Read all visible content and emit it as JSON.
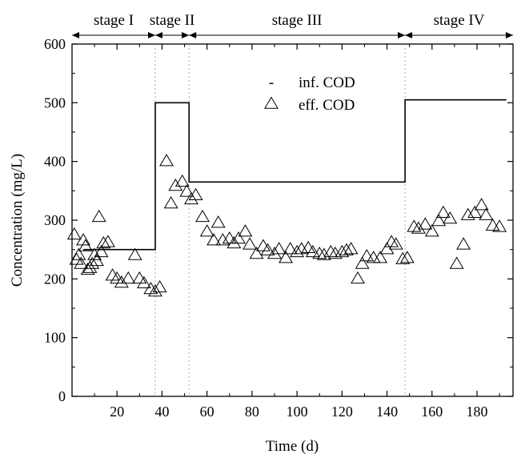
{
  "chart_data": {
    "type": "scatter",
    "xlabel": "Time (d)",
    "ylabel": "Concentration (mg/L)",
    "xlim": [
      0,
      196
    ],
    "ylim": [
      0,
      600
    ],
    "x_ticks": [
      20,
      40,
      60,
      80,
      100,
      120,
      140,
      160,
      180
    ],
    "y_ticks": [
      0,
      100,
      200,
      300,
      400,
      500,
      600
    ],
    "grid": false,
    "legend_position": "top-center",
    "stages": [
      {
        "label": "stage I",
        "start": 0,
        "end": 37
      },
      {
        "label": "stage II",
        "start": 37,
        "end": 52
      },
      {
        "label": "stage III",
        "start": 52,
        "end": 148
      },
      {
        "label": "stage IV",
        "start": 148,
        "end": 196
      }
    ],
    "series": [
      {
        "name": "inf. COD",
        "type": "line",
        "marker_symbol": "-",
        "x": [
          5,
          37,
          37,
          52,
          52,
          148,
          148,
          193
        ],
        "y": [
          250,
          250,
          500,
          500,
          365,
          365,
          505,
          505
        ]
      },
      {
        "name": "eff. COD",
        "type": "scatter",
        "marker": "triangle-open",
        "x": [
          1,
          2,
          3,
          4,
          5,
          6,
          7,
          8,
          9,
          10,
          11,
          12,
          13,
          14,
          16,
          18,
          20,
          22,
          25,
          28,
          30,
          32,
          35,
          37,
          39,
          42,
          44,
          46,
          49,
          51,
          53,
          55,
          58,
          60,
          63,
          65,
          67,
          70,
          72,
          74,
          77,
          79,
          82,
          85,
          87,
          90,
          92,
          95,
          97,
          100,
          102,
          105,
          107,
          110,
          112,
          115,
          117,
          120,
          122,
          124,
          127,
          129,
          131,
          134,
          137,
          140,
          142,
          144,
          147,
          149,
          152,
          154,
          157,
          160,
          163,
          165,
          168,
          171,
          174,
          176,
          179,
          182,
          184,
          187,
          190
        ],
        "y": [
          275,
          232,
          240,
          225,
          265,
          255,
          215,
          218,
          225,
          240,
          230,
          305,
          245,
          260,
          262,
          205,
          200,
          193,
          200,
          240,
          200,
          192,
          182,
          178,
          185,
          400,
          328,
          358,
          365,
          348,
          335,
          342,
          305,
          280,
          265,
          295,
          265,
          268,
          260,
          268,
          280,
          258,
          242,
          255,
          248,
          242,
          250,
          235,
          250,
          245,
          250,
          252,
          245,
          242,
          240,
          245,
          242,
          245,
          248,
          250,
          200,
          225,
          238,
          235,
          235,
          250,
          262,
          258,
          233,
          235,
          288,
          285,
          292,
          280,
          298,
          312,
          302,
          225,
          258,
          308,
          312,
          325,
          308,
          290,
          288
        ]
      }
    ]
  }
}
